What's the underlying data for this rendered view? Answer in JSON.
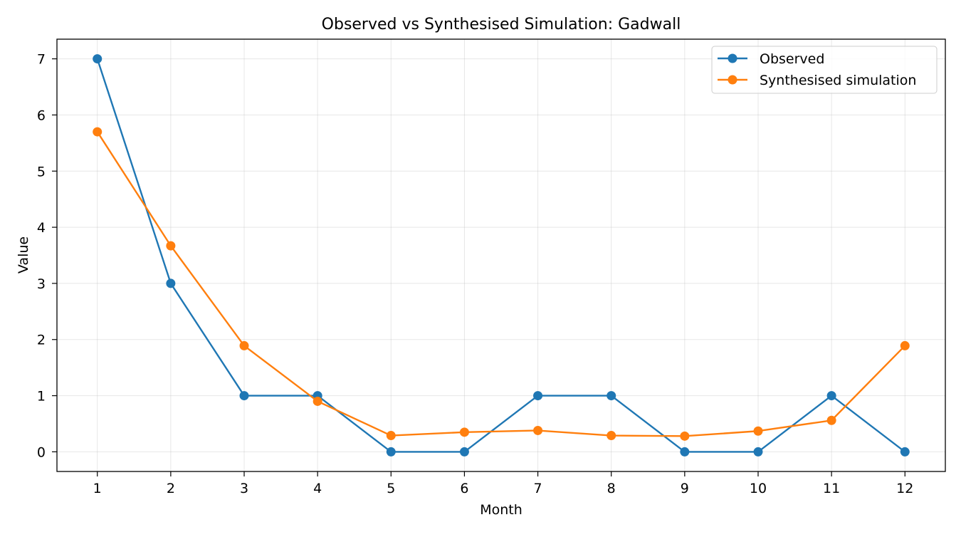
{
  "chart_data": {
    "type": "line",
    "title": "Observed vs Synthesised Simulation: Gadwall",
    "xlabel": "Month",
    "ylabel": "Value",
    "x": [
      1,
      2,
      3,
      4,
      5,
      6,
      7,
      8,
      9,
      10,
      11,
      12
    ],
    "x_ticks": [
      "1",
      "2",
      "3",
      "4",
      "5",
      "6",
      "7",
      "8",
      "9",
      "10",
      "11",
      "12"
    ],
    "y_ticks": [
      "0",
      "1",
      "2",
      "3",
      "4",
      "5",
      "6",
      "7"
    ],
    "xlim": [
      0.45,
      12.55
    ],
    "ylim": [
      -0.35,
      7.35
    ],
    "grid": true,
    "legend_position": "top-right",
    "series": [
      {
        "name": "Observed",
        "color": "#1f77b4",
        "marker": "circle",
        "values": [
          7,
          3,
          1,
          1,
          0,
          0,
          1,
          1,
          0,
          0,
          1,
          0
        ]
      },
      {
        "name": "Synthesised simulation",
        "color": "#ff7f0e",
        "marker": "circle",
        "values": [
          5.7,
          3.67,
          1.89,
          0.9,
          0.29,
          0.35,
          0.38,
          0.29,
          0.28,
          0.37,
          0.56,
          1.89
        ]
      }
    ]
  }
}
